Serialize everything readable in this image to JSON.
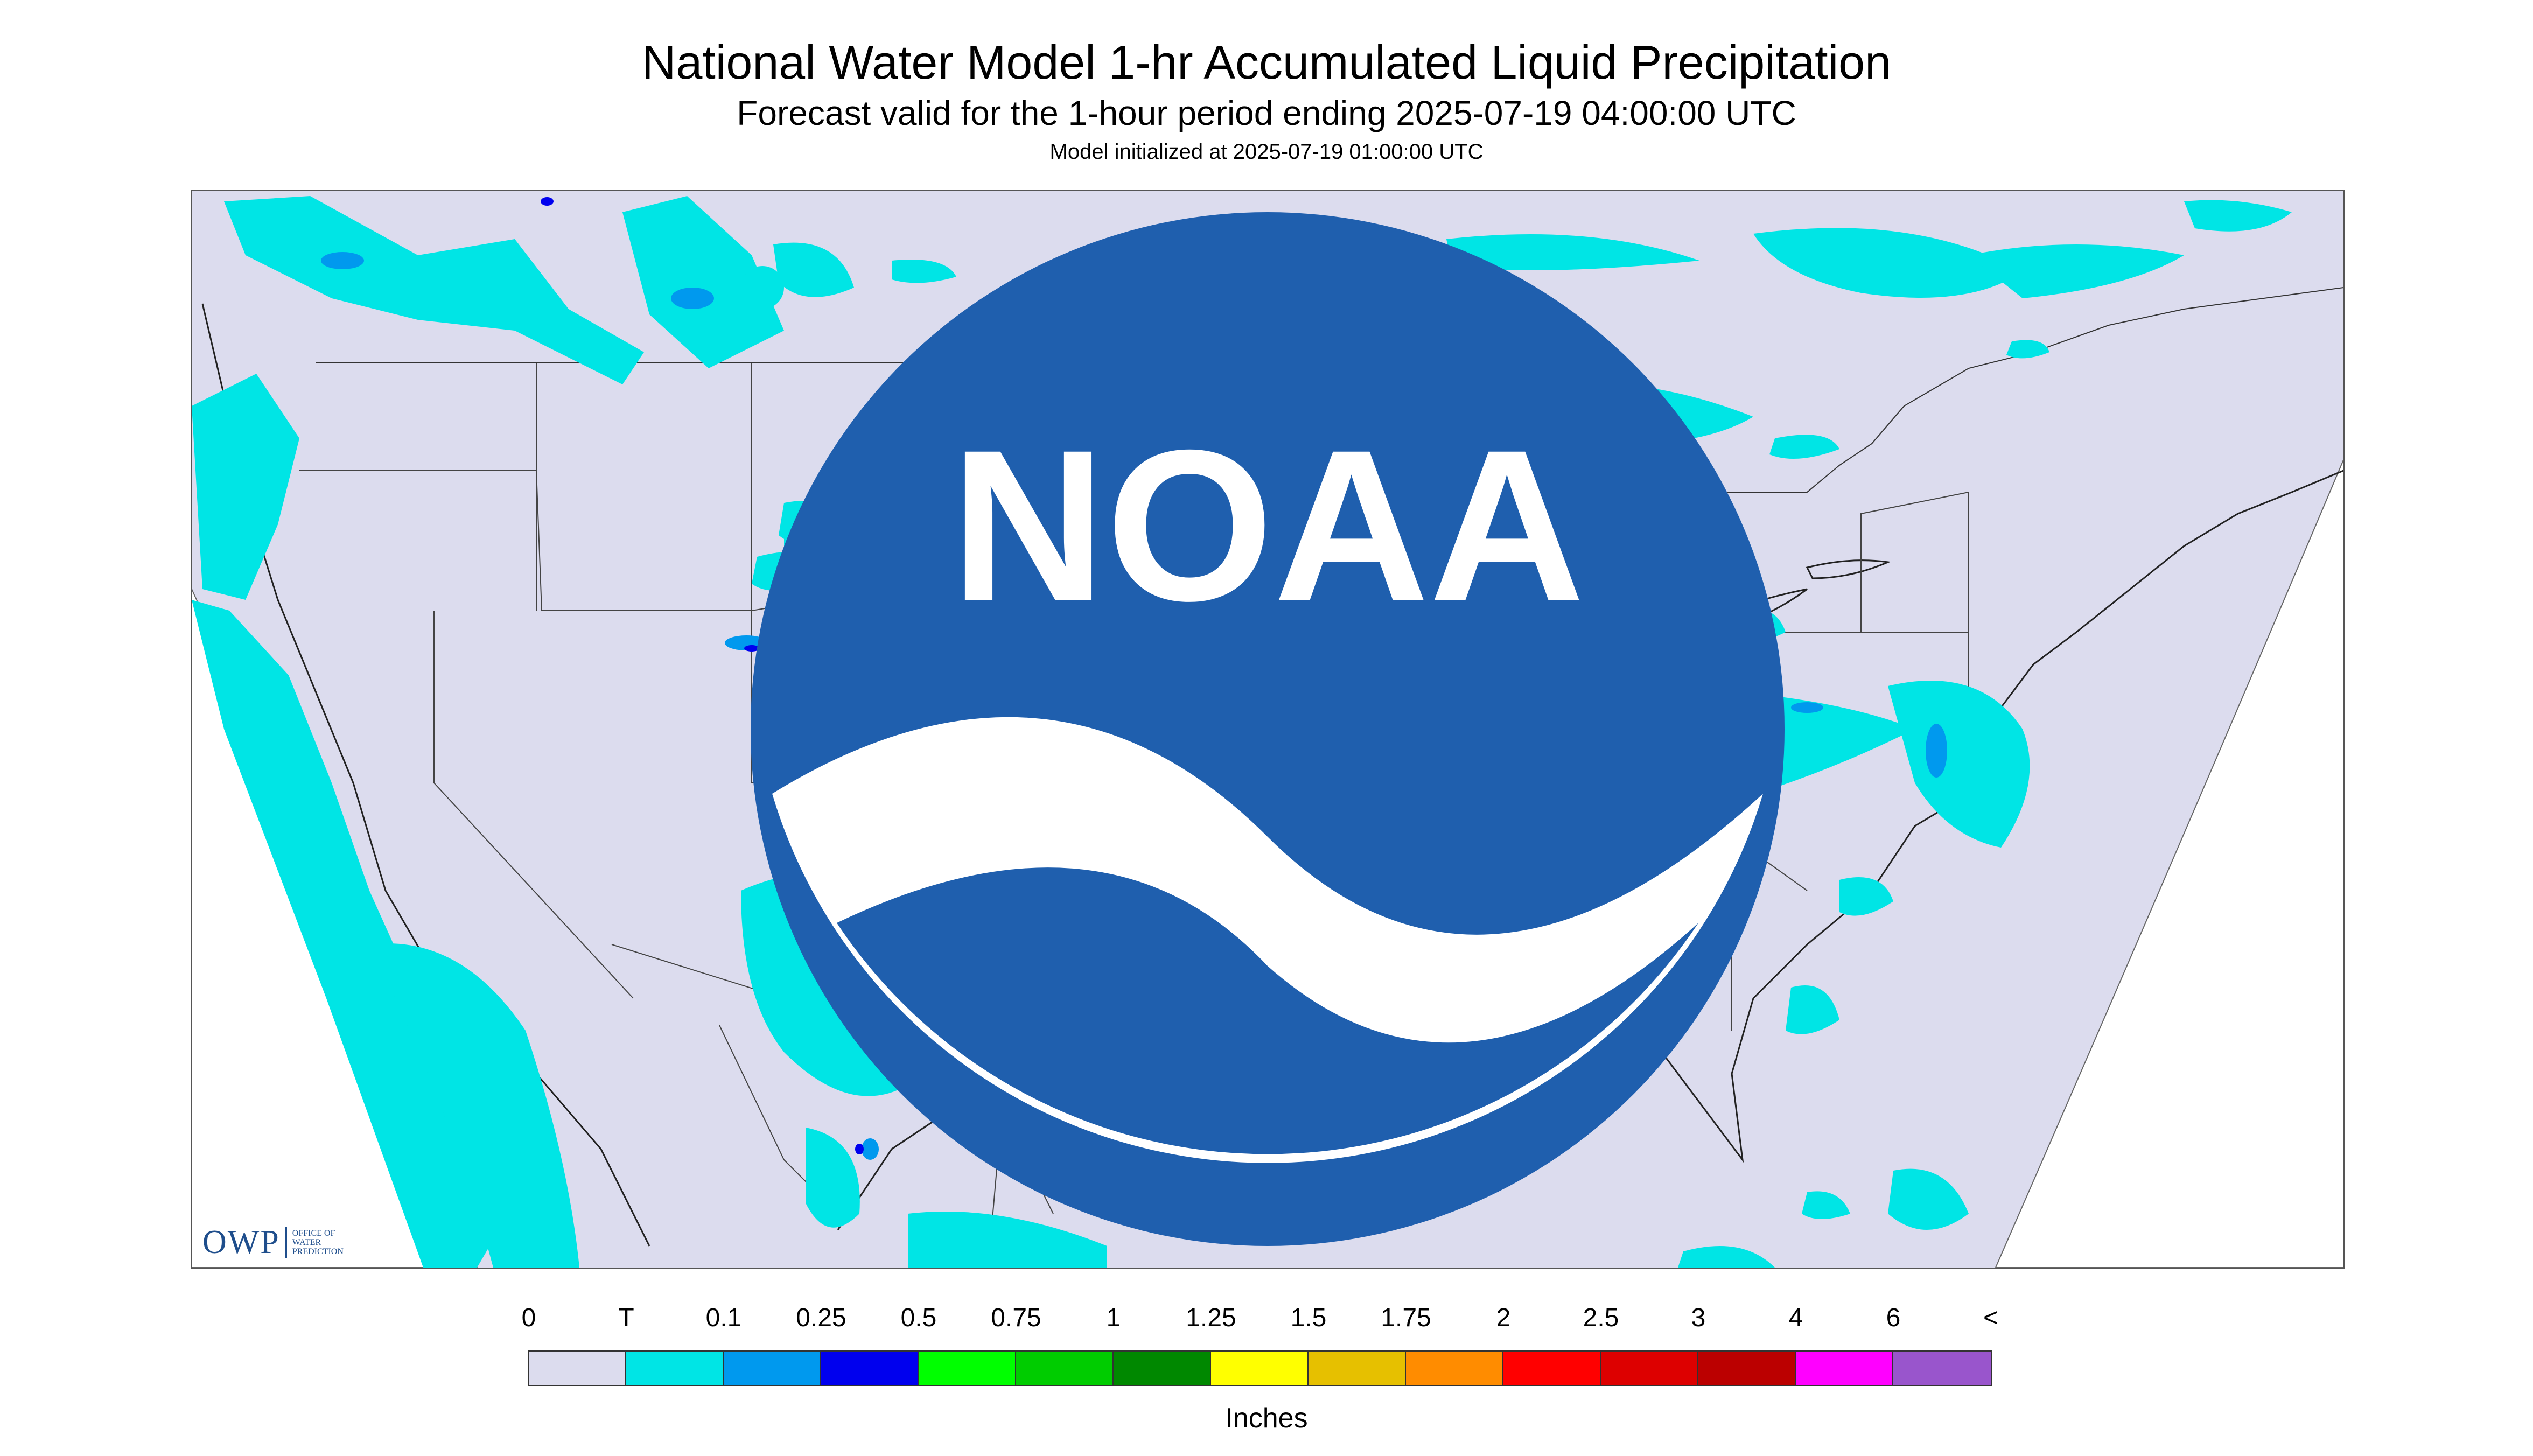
{
  "header": {
    "title": "National Water Model 1-hr Accumulated Liquid Precipitation",
    "subtitle": "Forecast valid for the 1-hour period ending 2025-07-19 04:00:00 UTC",
    "init_line": "Model initialized at 2025-07-19 01:00:00 UTC"
  },
  "logo": {
    "mark": "OWP",
    "line1": "OFFICE OF",
    "line2": "WATER",
    "line3": "PREDICTION",
    "noaa_text": "NOAA"
  },
  "colors": {
    "background": "#dcdcee",
    "trace": "#00e5e5",
    "light_blue": "#0099ee",
    "blue": "#0000ee",
    "outline": "#555555"
  },
  "legend": {
    "labels": [
      "0",
      "T",
      "0.1",
      "0.25",
      "0.5",
      "0.75",
      "1",
      "1.25",
      "1.5",
      "1.75",
      "2",
      "2.5",
      "3",
      "4",
      "6",
      "<"
    ],
    "colors": [
      "#dcdcee",
      "#00e5e5",
      "#0099ee",
      "#0000ee",
      "#00ff00",
      "#00cc00",
      "#008800",
      "#ffff00",
      "#e6c000",
      "#ff8c00",
      "#ff0000",
      "#dd0000",
      "#bb0000",
      "#ff00ff",
      "#9955cc"
    ],
    "units": "Inches"
  }
}
